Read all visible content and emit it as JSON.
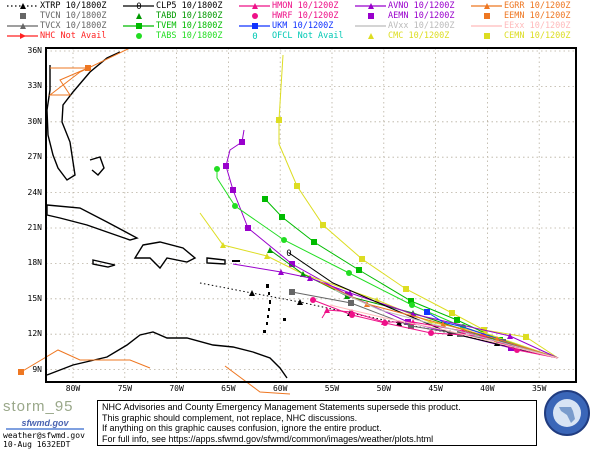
{
  "legend": [
    {
      "model": "XTRP",
      "time": "10/1800Z",
      "color": "#000000",
      "marker": "triangle",
      "line": "dotted"
    },
    {
      "model": "TVCN",
      "time": "10/1800Z",
      "color": "#666666",
      "marker": "square",
      "line": "none"
    },
    {
      "model": "TVCX",
      "time": "10/1800Z",
      "color": "#666666",
      "marker": "triangle",
      "line": "solid"
    },
    {
      "model": "NHC",
      "time": "Not Avail",
      "color": "#ff2222",
      "marker": "arrow",
      "line": "solid"
    },
    {
      "model": "CLP5",
      "time": "10/1800Z",
      "color": "#000000",
      "marker": "zero",
      "line": "solid"
    },
    {
      "model": "TABD",
      "time": "10/1800Z",
      "color": "#009900",
      "marker": "triangle",
      "line": "none"
    },
    {
      "model": "TVEM",
      "time": "10/1800Z",
      "color": "#00bb00",
      "marker": "square",
      "line": "solid"
    },
    {
      "model": "TABS",
      "time": "10/1800Z",
      "color": "#22dd22",
      "marker": "circle",
      "line": "none"
    },
    {
      "model": "HMON",
      "time": "10/1200Z",
      "color": "#ee1188",
      "marker": "triangle",
      "line": "solid"
    },
    {
      "model": "HWRF",
      "time": "10/1200Z",
      "color": "#ee1188",
      "marker": "circle",
      "line": "none"
    },
    {
      "model": "UKM",
      "time": "10/1200Z",
      "color": "#1133ff",
      "marker": "square",
      "line": "solid"
    },
    {
      "model": "OFCL",
      "time": "Not Avail",
      "color": "#00c8b4",
      "marker": "zero",
      "line": "none"
    },
    {
      "model": "AVNO",
      "time": "10/1200Z",
      "color": "#9900cc",
      "marker": "triangle",
      "line": "solid"
    },
    {
      "model": "AEMN",
      "time": "10/1200Z",
      "color": "#9900cc",
      "marker": "square",
      "line": "none"
    },
    {
      "model": "AVxx",
      "time": "10/1200Z",
      "color": "#bbbbbb",
      "marker": "none",
      "line": "solid"
    },
    {
      "model": "CMC",
      "time": "10/1200Z",
      "color": "#dddd22",
      "marker": "triangle",
      "line": "none"
    },
    {
      "model": "EGRR",
      "time": "10/1200Z",
      "color": "#ee7722",
      "marker": "triangle",
      "line": "solid"
    },
    {
      "model": "EEMN",
      "time": "10/1200Z",
      "color": "#ee7722",
      "marker": "square",
      "line": "none"
    },
    {
      "model": "EExx",
      "time": "10/1200Z",
      "color": "#ffbbbb",
      "marker": "none",
      "line": "solid"
    },
    {
      "model": "CEMN",
      "time": "10/1200Z",
      "color": "#dddd22",
      "marker": "square",
      "line": "none"
    }
  ],
  "axes": {
    "lat_labels": [
      "36N",
      "33N",
      "30N",
      "27N",
      "24N",
      "21N",
      "18N",
      "15N",
      "12N",
      "9N"
    ],
    "lon_labels": [
      "80W",
      "75W",
      "70W",
      "65W",
      "60W",
      "55W",
      "50W",
      "45W",
      "40W",
      "35W"
    ]
  },
  "footer": {
    "storm_name": "storm_95",
    "site_logo": "sfwmd.gov",
    "email": "weather@sfwmd.gov",
    "timestamp": "10-Aug 1632EDT",
    "disclaimer": [
      "NHC Advisories and County Emergency Management Statements supersede this product.",
      "This graphic should complement, not replace, NHC discussions.",
      "If anything on this graphic causes confusion, ignore the entire product.",
      "For full info, see  https://apps.sfwmd.gov/sfwmd/common/images/weather/plots.html"
    ],
    "seal_text": "South Florida Water Management District"
  }
}
